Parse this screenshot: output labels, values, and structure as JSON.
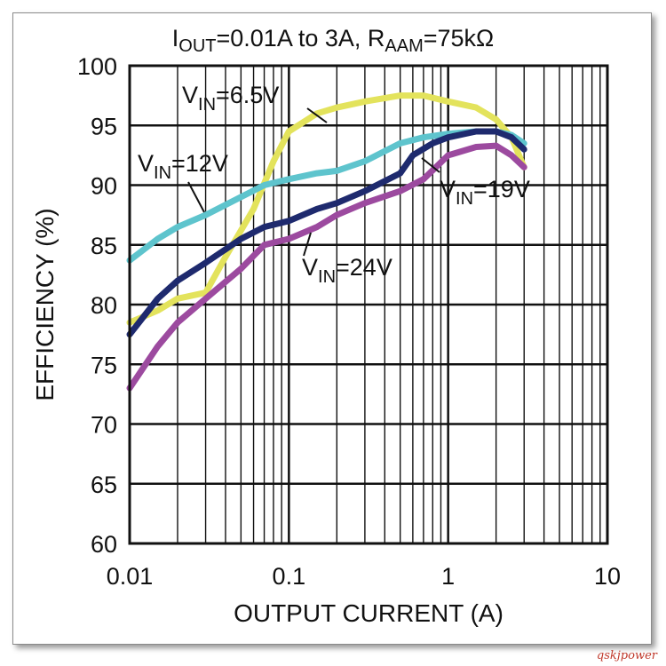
{
  "chart_data": {
    "type": "line",
    "title": {
      "pre": "I",
      "sub1": "OUT",
      "mid": "=0.01A to 3A, R",
      "sub2": "AAM",
      "post": "=75kΩ"
    },
    "xlabel": "OUTPUT CURRENT (A)",
    "ylabel": "EFFICIENCY (%)",
    "xscale": "log",
    "xlim": [
      0.01,
      10
    ],
    "ylim": [
      60,
      100
    ],
    "xticks": [
      {
        "value": 0.01,
        "label": "0.01"
      },
      {
        "value": 0.1,
        "label": "0.1"
      },
      {
        "value": 1,
        "label": "1"
      },
      {
        "value": 10,
        "label": "10"
      }
    ],
    "yticks": [
      60,
      65,
      70,
      75,
      80,
      85,
      90,
      95,
      100
    ],
    "grid": true,
    "series": [
      {
        "name": "VIN=6.5V",
        "label": {
          "pre": "V",
          "sub": "IN",
          "post": "=6.5V"
        },
        "color": "#e3e35c",
        "x": [
          0.01,
          0.015,
          0.02,
          0.03,
          0.04,
          0.06,
          0.08,
          0.1,
          0.15,
          0.2,
          0.3,
          0.5,
          0.7,
          1,
          1.5,
          2,
          2.5,
          3
        ],
        "y": [
          78.5,
          79.5,
          80.5,
          81,
          84,
          88,
          92,
          94.5,
          96,
          96.5,
          97,
          97.5,
          97.5,
          97,
          96.5,
          95.5,
          94,
          91.5
        ]
      },
      {
        "name": "VIN=12V",
        "label": {
          "pre": "V",
          "sub": "IN",
          "post": "=12V"
        },
        "color": "#5ec4cd",
        "x": [
          0.01,
          0.015,
          0.02,
          0.03,
          0.05,
          0.07,
          0.1,
          0.15,
          0.2,
          0.3,
          0.5,
          0.7,
          1,
          1.5,
          2,
          2.5,
          3
        ],
        "y": [
          83.7,
          85.5,
          86.5,
          87.5,
          89,
          90,
          90.5,
          91,
          91.2,
          92,
          93.5,
          94,
          94.3,
          94.5,
          94.5,
          94.2,
          93.5
        ]
      },
      {
        "name": "VIN=19V",
        "label": {
          "pre": "V",
          "sub": "IN",
          "post": "=19V"
        },
        "color": "#1e2a6e",
        "x": [
          0.01,
          0.015,
          0.02,
          0.03,
          0.05,
          0.07,
          0.1,
          0.15,
          0.2,
          0.3,
          0.5,
          0.6,
          0.8,
          1,
          1.5,
          2,
          2.5,
          3
        ],
        "y": [
          77.5,
          80.5,
          82,
          83.5,
          85.5,
          86.5,
          87,
          88,
          88.5,
          89.5,
          91,
          92.5,
          93.5,
          94,
          94.5,
          94.5,
          94,
          93
        ]
      },
      {
        "name": "VIN=24V",
        "label": {
          "pre": "V",
          "sub": "IN",
          "post": "=24V"
        },
        "color": "#9c4a9f",
        "x": [
          0.01,
          0.015,
          0.02,
          0.03,
          0.05,
          0.07,
          0.1,
          0.15,
          0.2,
          0.3,
          0.5,
          0.7,
          1,
          1.5,
          2,
          2.5,
          3
        ],
        "y": [
          73,
          76.5,
          78.5,
          80.5,
          83,
          85,
          85.5,
          86.5,
          87.5,
          88.5,
          89.5,
          90.5,
          92.5,
          93.2,
          93.3,
          92.5,
          91.5
        ]
      }
    ]
  },
  "watermark": "qskjpower"
}
